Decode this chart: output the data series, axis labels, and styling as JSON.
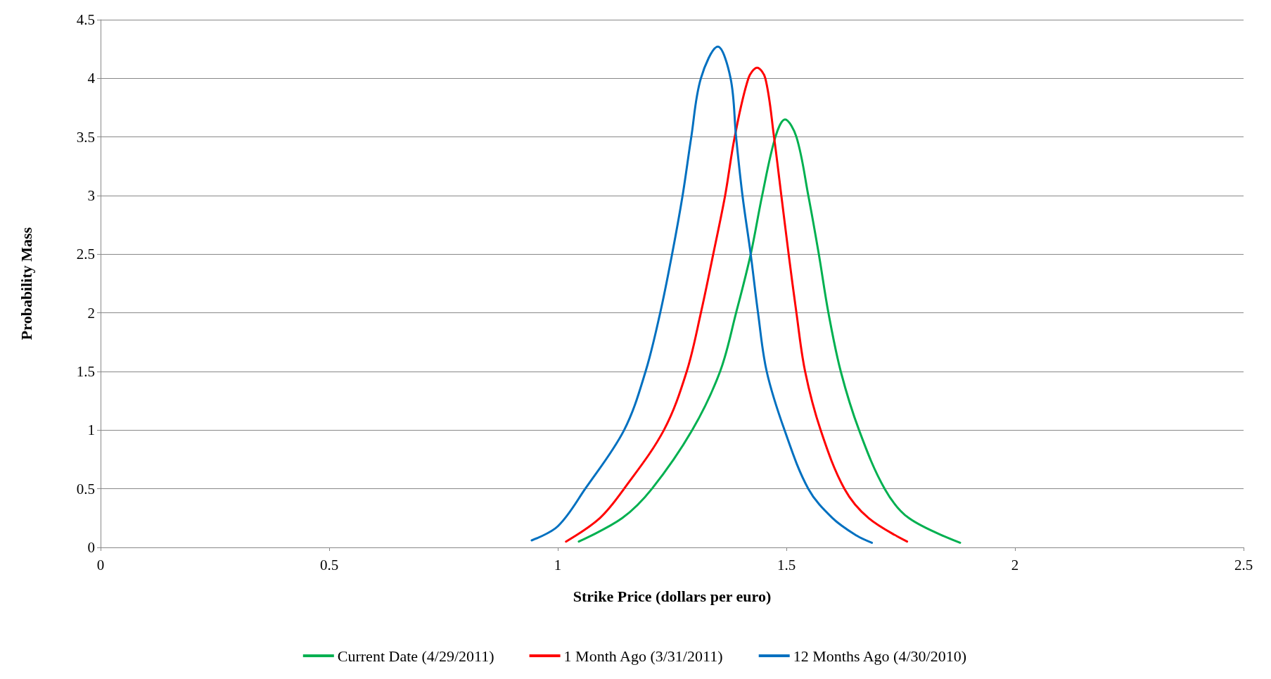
{
  "chart_data": {
    "type": "line",
    "xlabel": "Strike Price (dollars per euro)",
    "ylabel": "Probability Mass",
    "xlim": [
      0,
      2.5
    ],
    "xticks": [
      0,
      0.5,
      1,
      1.5,
      2,
      2.5
    ],
    "ylim": [
      0,
      4.5
    ],
    "yticks": [
      0,
      0.5,
      1,
      1.5,
      2,
      2.5,
      3,
      3.5,
      4,
      4.5
    ],
    "grid": "y",
    "legend": "bottom",
    "marker": "none",
    "line_style": "solid",
    "series": [
      {
        "name": "Current Date (4/29/2011)",
        "color": "#00b050",
        "x": [
          1.046,
          1.141,
          1.206,
          1.294,
          1.355,
          1.39,
          1.422,
          1.447,
          1.476,
          1.497,
          1.522,
          1.548,
          1.571,
          1.592,
          1.619,
          1.659,
          1.715,
          1.768,
          1.88
        ],
        "values": [
          0.05,
          0.25,
          0.5,
          1,
          1.5,
          2,
          2.5,
          3,
          3.5,
          3.65,
          3.5,
          3,
          2.5,
          2,
          1.5,
          1,
          0.5,
          0.25,
          0.04
        ]
      },
      {
        "name": "1 Month Ago (3/31/2011)",
        "color": "#ff0000",
        "x": [
          1.018,
          1.092,
          1.145,
          1.232,
          1.282,
          1.313,
          1.34,
          1.366,
          1.387,
          1.417,
          1.436,
          1.454,
          1.473,
          1.489,
          1.505,
          1.522,
          1.541,
          1.575,
          1.627,
          1.68,
          1.764
        ],
        "values": [
          0.05,
          0.25,
          0.5,
          1,
          1.5,
          2,
          2.5,
          3,
          3.5,
          4,
          4.09,
          4,
          3.5,
          3,
          2.5,
          2,
          1.5,
          1,
          0.5,
          0.25,
          0.05
        ]
      },
      {
        "name": "12 Months Ago (4/30/2010)",
        "color": "#0070c0",
        "x": [
          0.943,
          1.0,
          1.06,
          1.145,
          1.192,
          1.224,
          1.25,
          1.273,
          1.292,
          1.313,
          1.35,
          1.378,
          1.39,
          1.404,
          1.422,
          1.438,
          1.457,
          1.496,
          1.548,
          1.601,
          1.654,
          1.687
        ],
        "values": [
          0.06,
          0.18,
          0.5,
          1,
          1.5,
          2,
          2.5,
          3,
          3.5,
          4,
          4.27,
          4,
          3.5,
          3,
          2.5,
          2,
          1.5,
          1,
          0.5,
          0.25,
          0.1,
          0.04
        ]
      }
    ]
  }
}
